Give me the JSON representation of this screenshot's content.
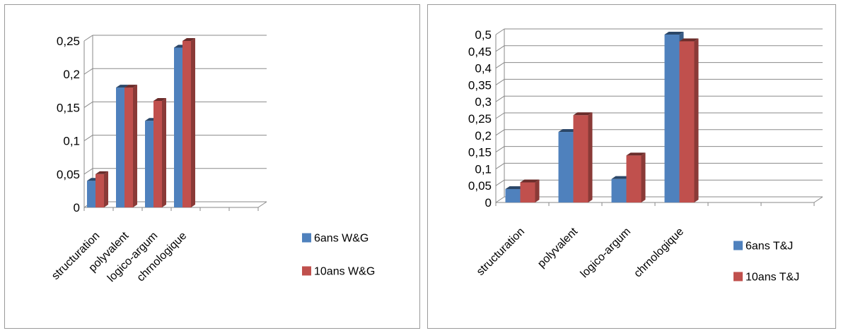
{
  "colors": {
    "series1": "#4F81BD",
    "series2": "#C0504D"
  },
  "chart_data": [
    {
      "type": "bar",
      "categories": [
        "structuration",
        "polyvalent",
        "logico-argum",
        "chrnologique"
      ],
      "series": [
        {
          "name": "6ans W&G",
          "values": [
            0.04,
            0.18,
            0.13,
            0.24
          ]
        },
        {
          "name": "10ans W&G",
          "values": [
            0.05,
            0.18,
            0.16,
            0.25
          ]
        }
      ],
      "ylim": [
        0,
        0.25
      ],
      "ytick_step": 0.05,
      "ytick_labels": [
        "0",
        "0,05",
        "0,1",
        "0,15",
        "0,2",
        "0,25"
      ],
      "empty_category_slots": 2,
      "grid": true,
      "legend_position": "right",
      "title": "",
      "xlabel": "",
      "ylabel": ""
    },
    {
      "type": "bar",
      "categories": [
        "structuration",
        "polyvalent",
        "logico-argum",
        "chrnologique"
      ],
      "series": [
        {
          "name": "6ans T&J",
          "values": [
            0.04,
            0.21,
            0.07,
            0.5
          ]
        },
        {
          "name": "10ans T&J",
          "values": [
            0.06,
            0.26,
            0.14,
            0.48
          ]
        }
      ],
      "ylim": [
        0,
        0.5
      ],
      "ytick_step": 0.05,
      "ytick_labels": [
        "0",
        "0,05",
        "0,1",
        "0,15",
        "0,2",
        "0,25",
        "0,3",
        "0,35",
        "0,4",
        "0,45",
        "0,5"
      ],
      "empty_category_slots": 2,
      "grid": true,
      "legend_position": "right",
      "title": "",
      "xlabel": "",
      "ylabel": ""
    }
  ]
}
